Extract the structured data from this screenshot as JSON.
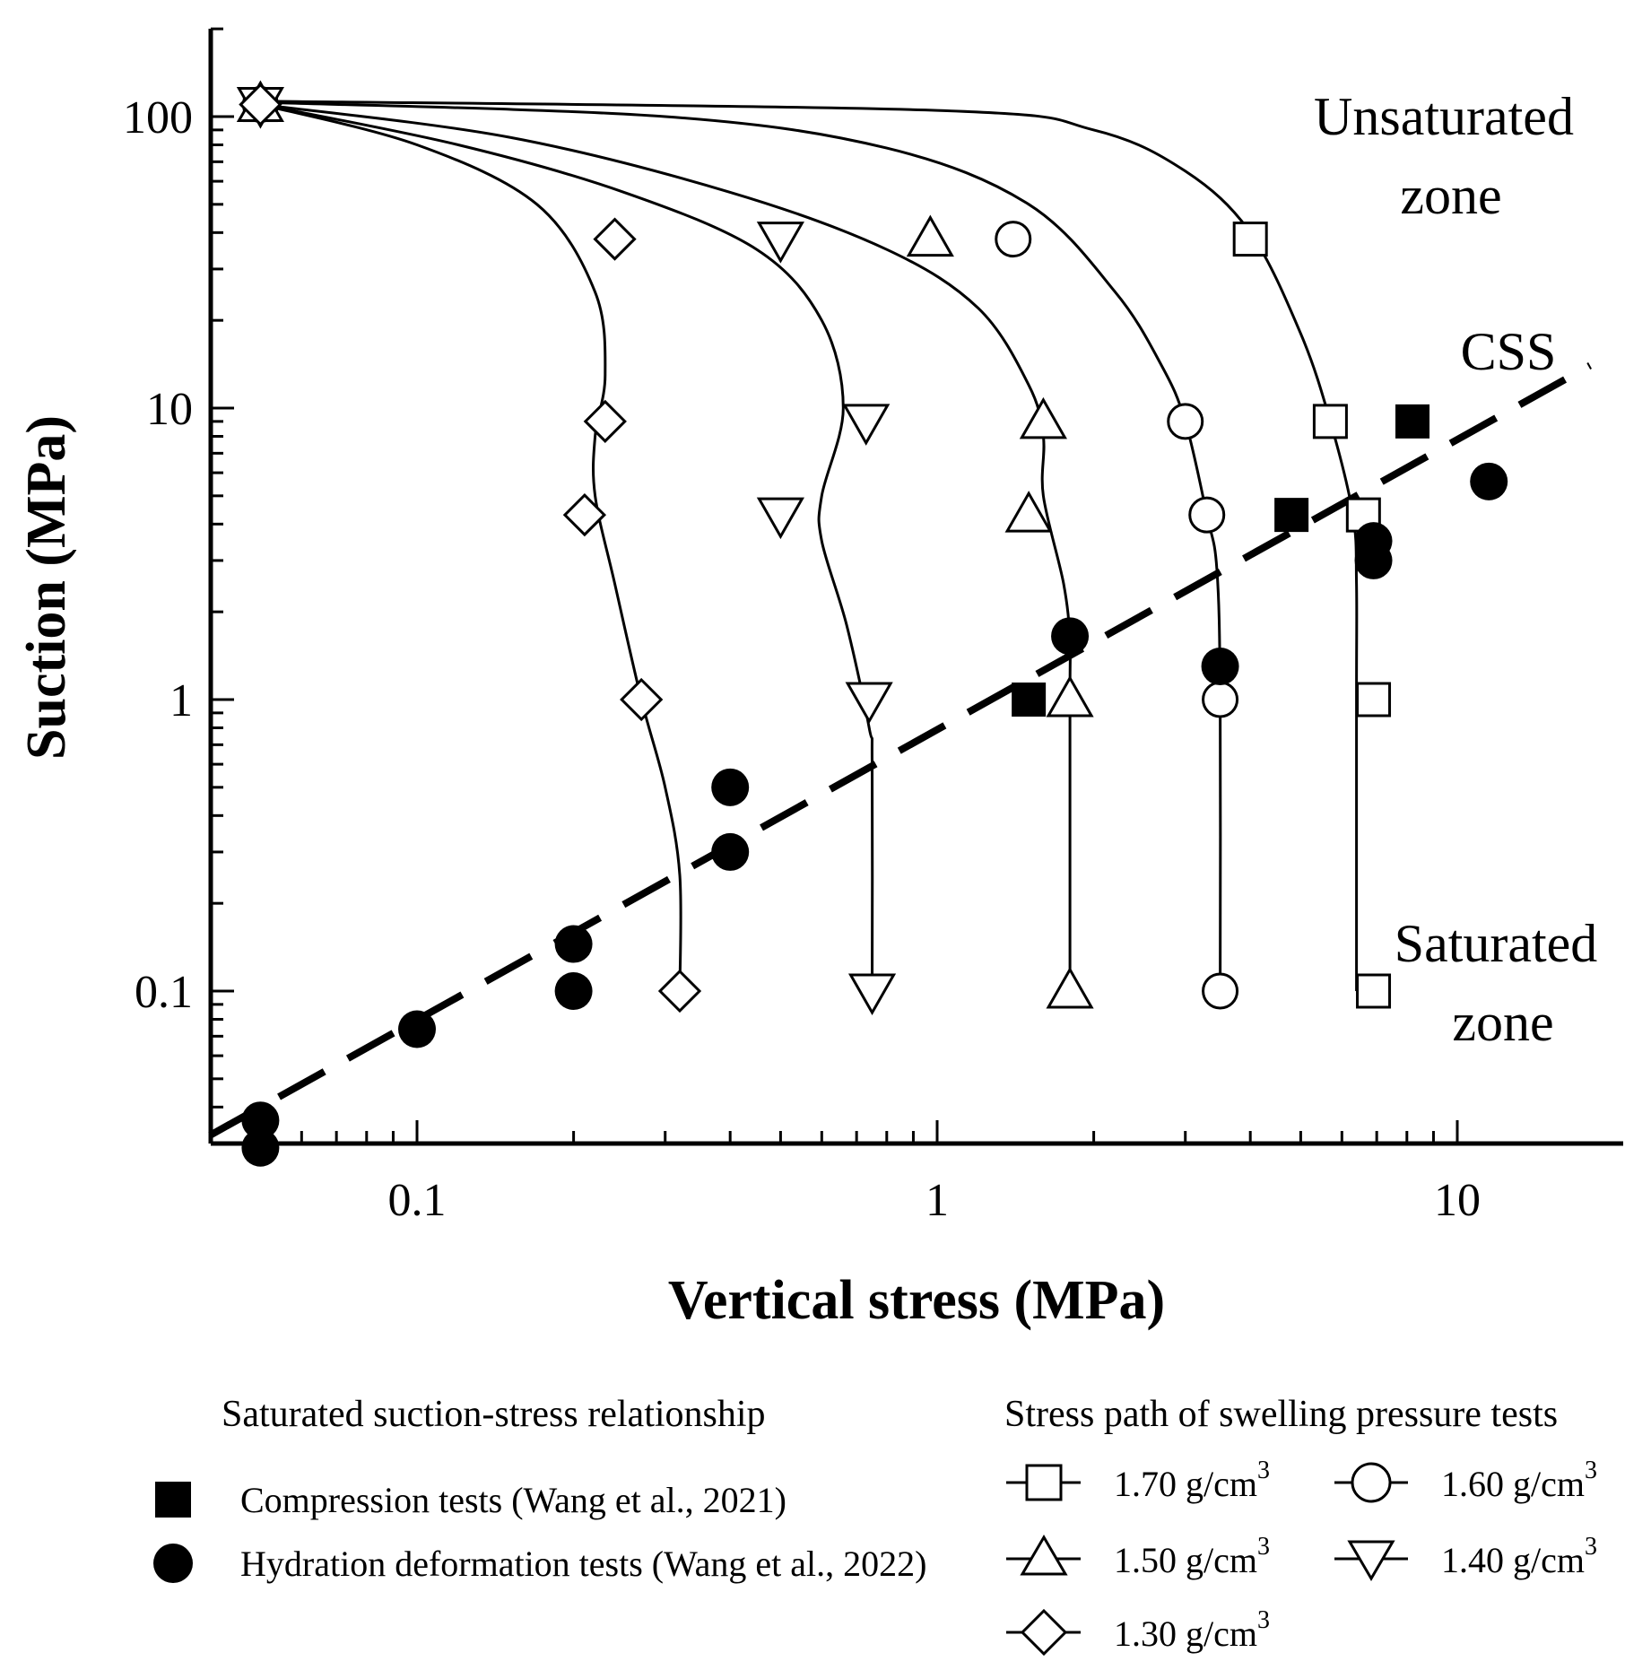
{
  "chart_data": {
    "type": "scatter",
    "title": "",
    "xlabel": "Vertical stress (MPa)",
    "ylabel": "Suction (MPa)",
    "xscale": "log",
    "yscale": "log",
    "xlim": [
      0.04,
      19
    ],
    "ylim": [
      0.03,
      200
    ],
    "xticks": [
      {
        "v": 0.1,
        "label": "0.1"
      },
      {
        "v": 1,
        "label": "1"
      },
      {
        "v": 10,
        "label": "10"
      }
    ],
    "yticks": [
      {
        "v": 0.1,
        "label": "0.1"
      },
      {
        "v": 1,
        "label": "1"
      },
      {
        "v": 10,
        "label": "10"
      },
      {
        "v": 100,
        "label": "100"
      }
    ],
    "annotations": {
      "unsat_line1": "Unsaturated",
      "unsat_line2": "zone",
      "css": "CSS",
      "sat_line1": "Saturated",
      "sat_line2": "zone"
    },
    "css_line": {
      "name": "CSS",
      "x": [
        0.04,
        18
      ],
      "y": [
        0.032,
        14
      ]
    },
    "saturated_series": [
      {
        "name": "Compression tests (Wang et al., 2021)",
        "marker": "filled-square",
        "points": [
          [
            1.5,
            1.0
          ],
          [
            4.8,
            4.3
          ],
          [
            8.2,
            9.0
          ]
        ]
      },
      {
        "name": "Hydration deformation tests (Wang et al., 2022)",
        "marker": "filled-circle",
        "points": [
          [
            0.05,
            0.036
          ],
          [
            0.05,
            0.029
          ],
          [
            0.1,
            0.074
          ],
          [
            0.2,
            0.1
          ],
          [
            0.2,
            0.145
          ],
          [
            0.4,
            0.3
          ],
          [
            0.4,
            0.5
          ],
          [
            1.8,
            1.65
          ],
          [
            3.5,
            1.3
          ],
          [
            6.9,
            3.5
          ],
          [
            6.9,
            3.0
          ],
          [
            11.5,
            5.6
          ]
        ]
      }
    ],
    "stress_path_series": [
      {
        "name": "1.70 g/cm",
        "unit_exp": "3",
        "marker": "open-square",
        "points": [
          [
            0.05,
            110
          ],
          [
            4.0,
            38
          ],
          [
            5.7,
            9.0
          ],
          [
            6.6,
            4.3
          ],
          [
            6.9,
            1.0
          ],
          [
            6.9,
            0.1
          ]
        ],
        "curve": [
          [
            0.05,
            113
          ],
          [
            1.0,
            105
          ],
          [
            2.0,
            90
          ],
          [
            3.0,
            65
          ],
          [
            4.0,
            40
          ],
          [
            5.0,
            18
          ],
          [
            5.7,
            9.0
          ],
          [
            6.3,
            4.3
          ],
          [
            6.4,
            2.5
          ],
          [
            6.4,
            1.0
          ],
          [
            6.4,
            0.1
          ]
        ]
      },
      {
        "name": "1.60 g/cm",
        "unit_exp": "3",
        "marker": "open-circle",
        "points": [
          [
            0.05,
            110
          ],
          [
            1.4,
            38
          ],
          [
            3.0,
            9.0
          ],
          [
            3.3,
            4.3
          ],
          [
            3.5,
            1.0
          ],
          [
            3.5,
            0.1
          ]
        ],
        "curve": [
          [
            0.05,
            112
          ],
          [
            0.3,
            100
          ],
          [
            0.8,
            78
          ],
          [
            1.5,
            50
          ],
          [
            2.2,
            25
          ],
          [
            2.7,
            14
          ],
          [
            3.0,
            9.0
          ],
          [
            3.3,
            4.3
          ],
          [
            3.45,
            2.8
          ],
          [
            3.5,
            1.0
          ],
          [
            3.5,
            0.1
          ]
        ]
      },
      {
        "name": "1.50 g/cm",
        "unit_exp": "3",
        "marker": "open-triangle-up",
        "points": [
          [
            0.05,
            110
          ],
          [
            0.97,
            38
          ],
          [
            1.6,
            9.0
          ],
          [
            1.5,
            4.3
          ],
          [
            1.8,
            1.0
          ],
          [
            1.8,
            0.1
          ]
        ],
        "curve": [
          [
            0.05,
            110
          ],
          [
            0.15,
            85
          ],
          [
            0.4,
            55
          ],
          [
            0.8,
            35
          ],
          [
            1.2,
            22
          ],
          [
            1.5,
            12
          ],
          [
            1.6,
            8.0
          ],
          [
            1.6,
            5.0
          ],
          [
            1.75,
            2.5
          ],
          [
            1.8,
            1.6
          ],
          [
            1.8,
            1.0
          ],
          [
            1.8,
            0.1
          ]
        ]
      },
      {
        "name": "1.40 g/cm",
        "unit_exp": "3",
        "marker": "open-triangle-down",
        "points": [
          [
            0.05,
            110
          ],
          [
            0.5,
            38
          ],
          [
            0.73,
            9.0
          ],
          [
            0.5,
            4.3
          ],
          [
            0.74,
            1.0
          ],
          [
            0.75,
            0.1
          ]
        ],
        "curve": [
          [
            0.05,
            110
          ],
          [
            0.12,
            80
          ],
          [
            0.25,
            55
          ],
          [
            0.45,
            35
          ],
          [
            0.6,
            20
          ],
          [
            0.66,
            10
          ],
          [
            0.6,
            5.0
          ],
          [
            0.6,
            3.5
          ],
          [
            0.67,
            1.8
          ],
          [
            0.74,
            0.8
          ],
          [
            0.75,
            0.6
          ],
          [
            0.75,
            0.1
          ]
        ]
      },
      {
        "name": "1.30 g/cm",
        "unit_exp": "3",
        "marker": "open-diamond",
        "points": [
          [
            0.05,
            110
          ],
          [
            0.24,
            38
          ],
          [
            0.23,
            9.0
          ],
          [
            0.21,
            4.3
          ],
          [
            0.27,
            1.0
          ],
          [
            0.32,
            0.1
          ]
        ],
        "curve": [
          [
            0.05,
            110
          ],
          [
            0.1,
            80
          ],
          [
            0.17,
            50
          ],
          [
            0.22,
            25
          ],
          [
            0.23,
            13
          ],
          [
            0.22,
            8.0
          ],
          [
            0.22,
            5.0
          ],
          [
            0.24,
            2.5
          ],
          [
            0.27,
            1.0
          ],
          [
            0.3,
            0.5
          ],
          [
            0.32,
            0.25
          ],
          [
            0.32,
            0.1
          ]
        ]
      }
    ],
    "legend": {
      "left_title": "Saturated suction-stress relationship",
      "right_title": "Stress path of swelling pressure tests"
    }
  }
}
